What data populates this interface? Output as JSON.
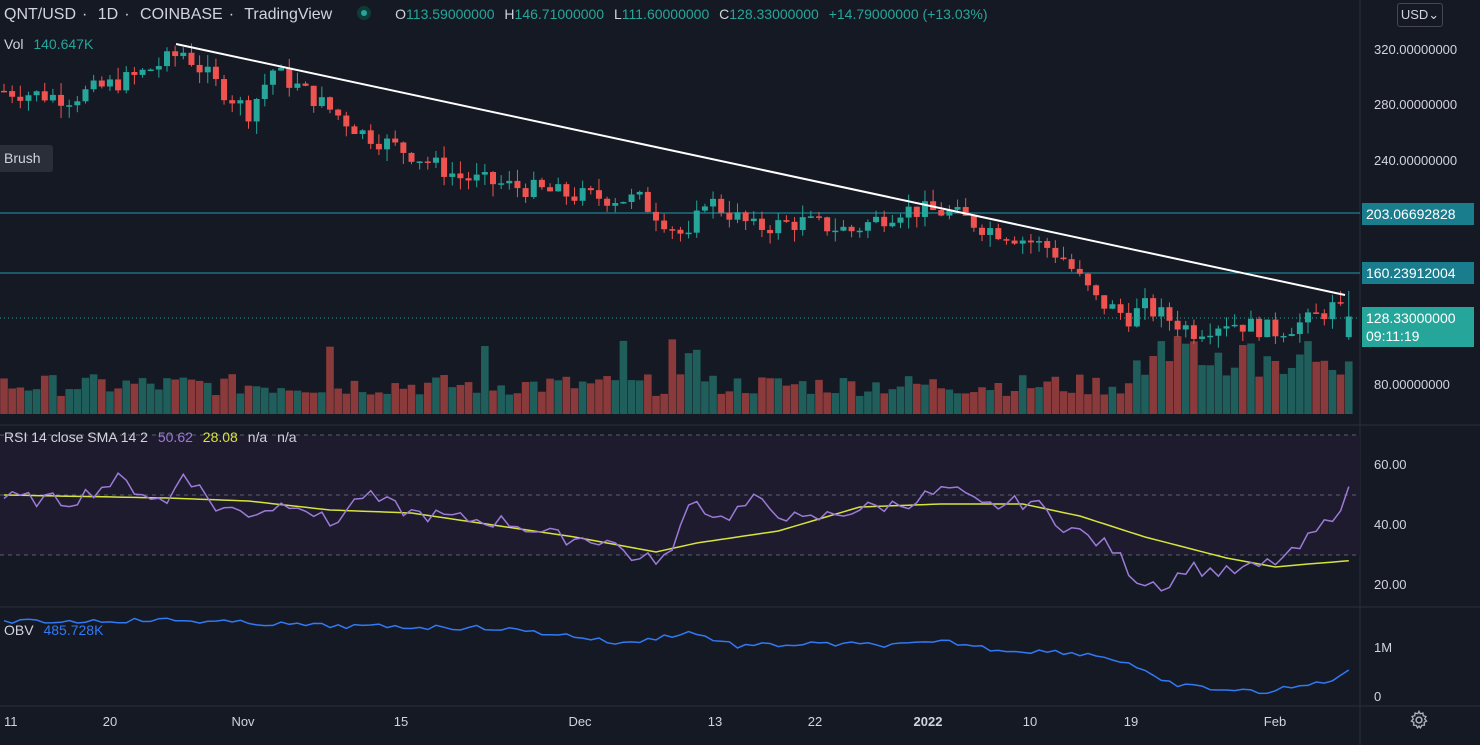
{
  "header": {
    "symbol": "QNT/USD",
    "interval": "1D",
    "exchange": "COINBASE",
    "source": "TradingView",
    "open_label": "O",
    "open": "113.59000000",
    "high_label": "H",
    "high": "146.71000000",
    "low_label": "L",
    "low": "111.60000000",
    "close_label": "C",
    "close": "128.33000000",
    "change": "+14.79000000 (+13.03%)"
  },
  "currency": "USD",
  "brush_label": "Brush",
  "volume": {
    "label": "Vol",
    "value": "140.647K"
  },
  "rsi": {
    "label": "RSI 14 close SMA 14 2",
    "rsi_value": "50.62",
    "sma_value": "28.08",
    "na1": "n/a",
    "na2": "n/a",
    "axis_ticks": [
      "60.00",
      "40.00",
      "20.00"
    ]
  },
  "obv": {
    "label": "OBV",
    "value": "485.728K",
    "axis_ticks": [
      "1M",
      "0"
    ]
  },
  "price_axis": {
    "ticks": [
      "320.00000000",
      "280.00000000",
      "240.00000000",
      "80.00000000"
    ],
    "level_203": "203.06692828",
    "level_160": "160.23912004",
    "last_price": "128.33000000",
    "countdown": "09:11:19"
  },
  "time_axis": [
    "11",
    "20",
    "Nov",
    "15",
    "Dec",
    "13",
    "22",
    "2022",
    "10",
    "19",
    "Feb"
  ],
  "colors": {
    "background": "#151924",
    "up": "#26a69a",
    "down": "#ef5350",
    "horizontal_lines": "#1a7d8e",
    "trendline": "#ffffff",
    "rsi_line": "#9c7ad8",
    "rsi_sma": "#d7e33d",
    "obv_line": "#3179f5"
  },
  "icons": {
    "settings": "gear-icon",
    "market_status": "live-dot-icon"
  }
}
